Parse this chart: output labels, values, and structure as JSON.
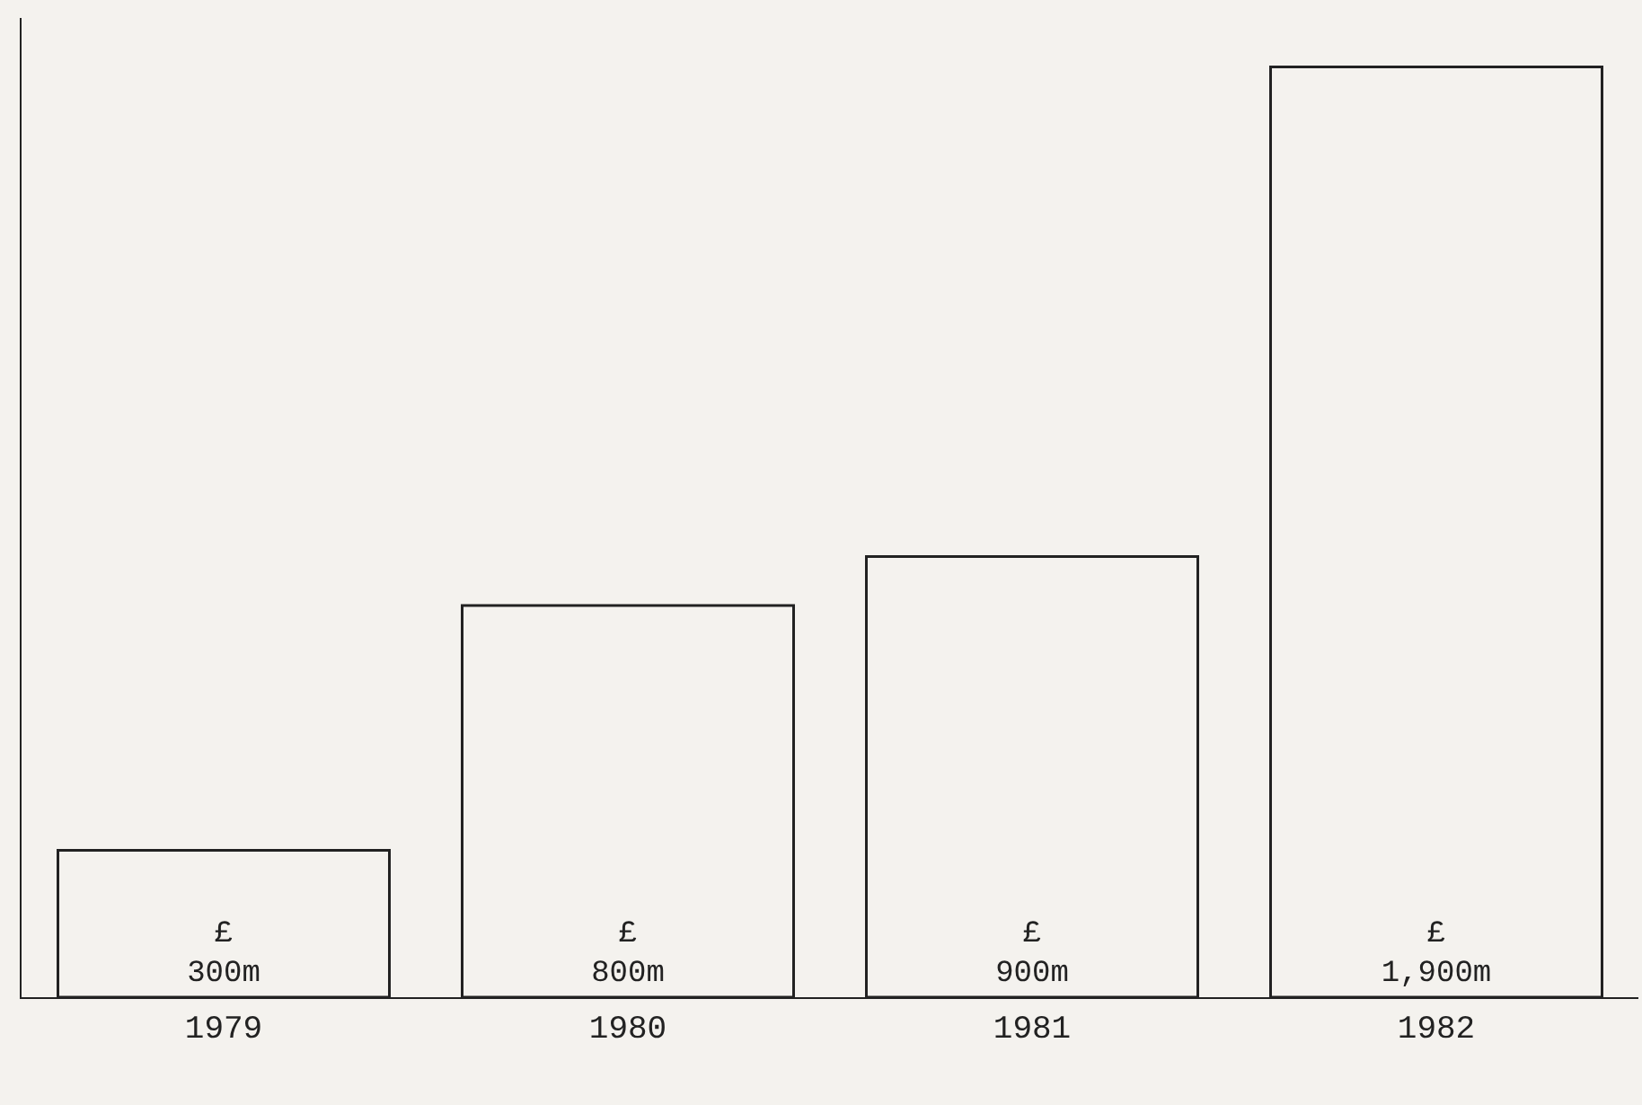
{
  "chart_data": {
    "type": "bar",
    "categories": [
      "1979",
      "1980",
      "1981",
      "1982"
    ],
    "values": [
      300,
      800,
      900,
      1900
    ],
    "value_labels": [
      "£\n300m",
      "£\n800m",
      "£\n900m",
      "£\n1,900m"
    ],
    "color": "#f4f2ee",
    "grid": false,
    "legend": false
  }
}
